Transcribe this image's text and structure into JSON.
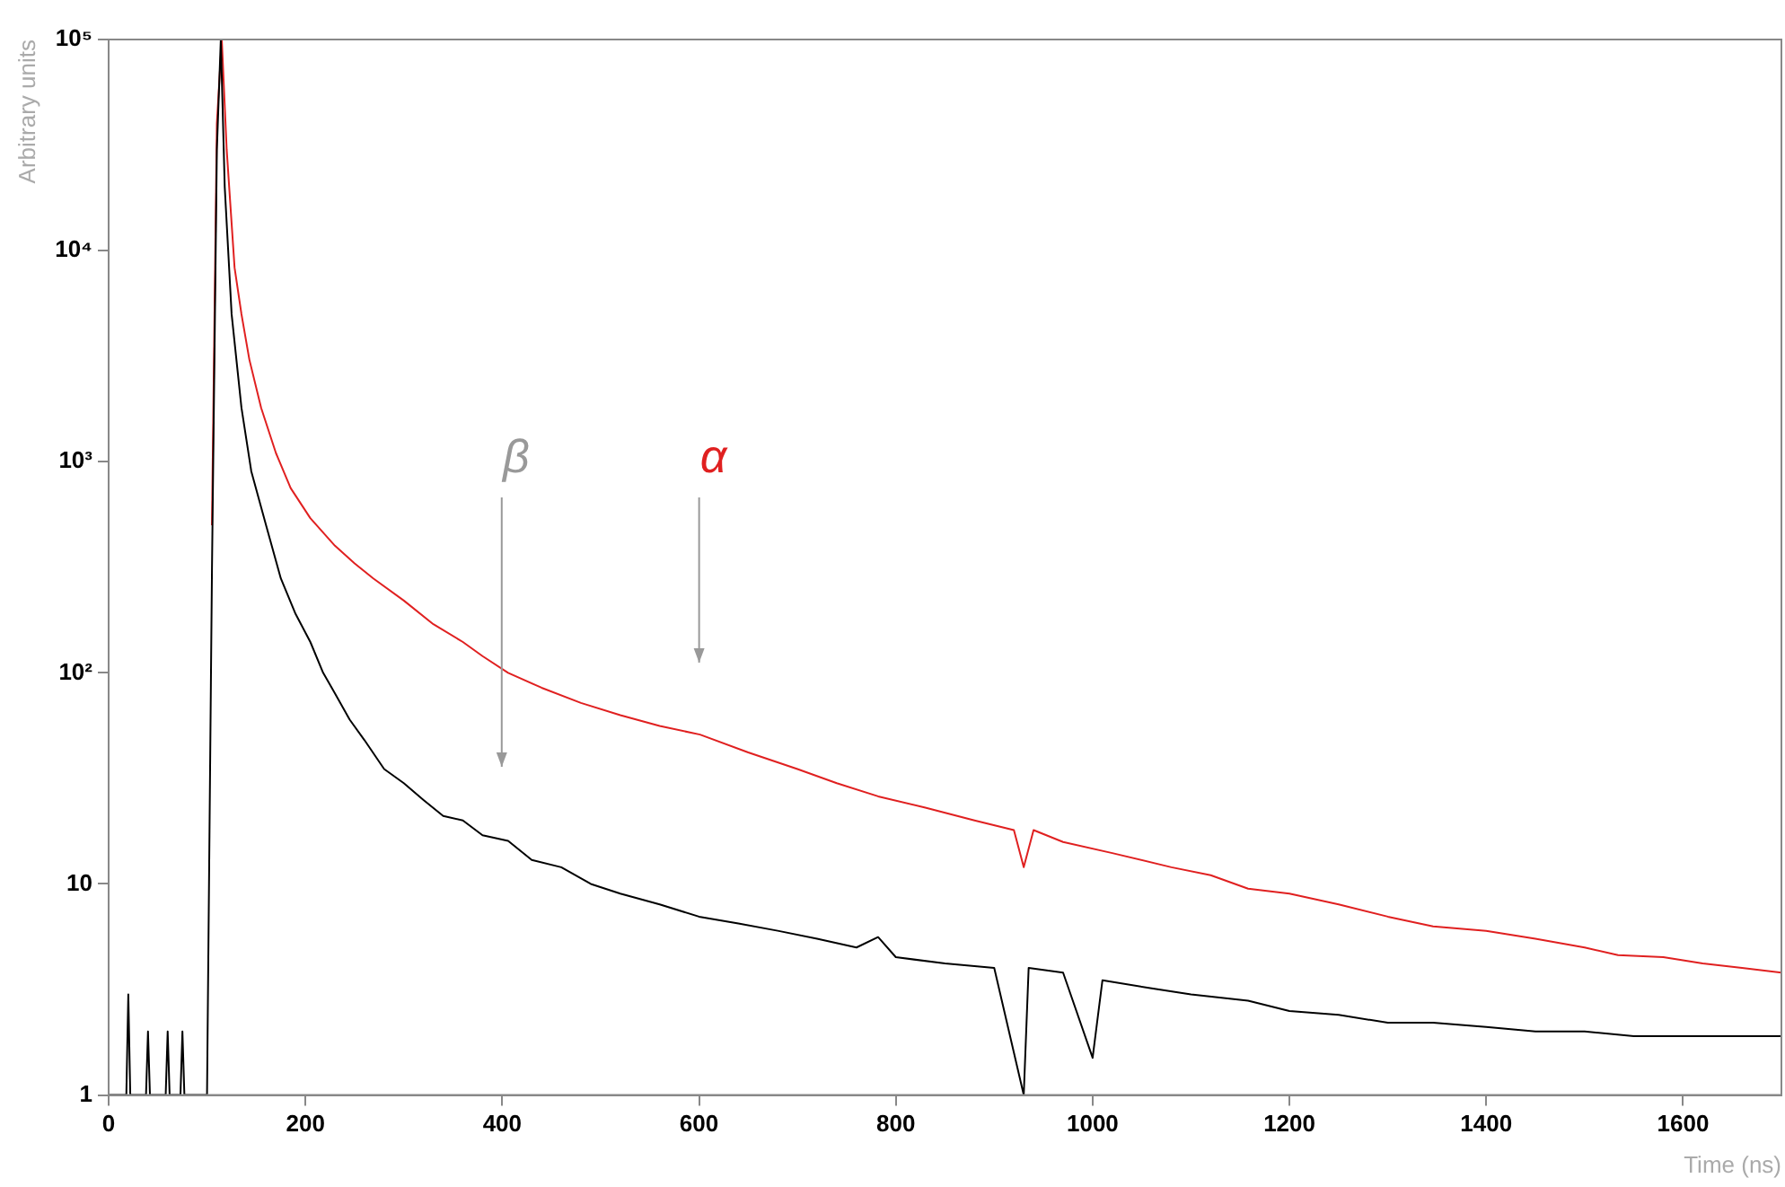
{
  "chart_data": {
    "type": "line",
    "xlabel": "Time (ns)",
    "ylabel": "Arbitrary units",
    "log": "y",
    "grid": false,
    "marker": "none",
    "line_style": "solid",
    "xlim": [
      0,
      1700
    ],
    "xticks": [
      0,
      200,
      400,
      600,
      800,
      1000,
      1200,
      1400,
      1600
    ],
    "ylim": [
      1,
      100000
    ],
    "yticks": [
      1,
      {
        "value": 10,
        "label": "10"
      },
      {
        "value": 100,
        "label": "10²"
      },
      {
        "value": 1000,
        "label": "10³"
      },
      {
        "value": 10000,
        "label": "10⁴"
      },
      {
        "value": 100000,
        "label": "10⁵"
      }
    ],
    "series": [
      {
        "color": "#000000",
        "x": [
          0,
          18,
          20,
          22,
          38,
          40,
          42,
          58,
          60,
          62,
          73,
          75,
          77,
          100,
          105,
          110,
          114,
          118,
          125,
          135,
          145,
          160,
          175,
          190,
          205,
          218,
          230,
          245,
          260,
          280,
          300,
          320,
          340,
          360,
          380,
          406,
          430,
          460,
          490,
          520,
          560,
          600,
          640,
          680,
          720,
          760,
          782,
          800,
          850,
          900,
          930,
          935,
          970,
          1000,
          1010,
          1060,
          1100,
          1158,
          1200,
          1250,
          1300,
          1346,
          1400,
          1450,
          1500,
          1550,
          1600,
          1650,
          1700
        ],
        "values": [
          1,
          1,
          3,
          1,
          1,
          2,
          1,
          1,
          2,
          1,
          1,
          2,
          1,
          1,
          300,
          30000,
          100000,
          20000,
          5000,
          1800,
          900,
          500,
          280,
          190,
          140,
          100,
          80,
          60,
          48,
          35,
          30,
          25,
          21,
          20,
          17,
          16,
          13,
          12,
          10,
          9,
          8,
          7,
          6.5,
          6,
          5.5,
          5,
          5.6,
          4.5,
          4.2,
          4,
          1,
          4,
          3.8,
          1.5,
          3.5,
          3.2,
          3,
          2.8,
          2.5,
          2.4,
          2.2,
          2.2,
          2.1,
          2,
          2,
          1.9,
          1.9,
          1.9,
          1.9
        ]
      },
      {
        "color": "#e02020",
        "x": [
          105,
          110,
          115,
          120,
          128,
          135,
          143,
          155,
          170,
          185,
          205,
          230,
          250,
          269,
          300,
          330,
          360,
          380,
          406,
          440,
          480,
          520,
          560,
          601,
          650,
          700,
          740,
          782,
          830,
          880,
          920,
          930,
          940,
          970,
          1020,
          1080,
          1120,
          1158,
          1200,
          1250,
          1300,
          1346,
          1400,
          1450,
          1500,
          1534,
          1580,
          1620,
          1660,
          1700
        ],
        "values": [
          500,
          40000,
          100000,
          30000,
          8300,
          5000,
          3050,
          1800,
          1100,
          750,
          540,
          400,
          330,
          280,
          220,
          170,
          140,
          120,
          100,
          85,
          72,
          63,
          56,
          51,
          42,
          35,
          30,
          26,
          23,
          20,
          18,
          12,
          18,
          15.8,
          14,
          12,
          11,
          9.5,
          9,
          8,
          7,
          6.3,
          6,
          5.5,
          5,
          4.6,
          4.5,
          4.2,
          4,
          3.8
        ]
      }
    ],
    "annotations": [
      "β",
      "α"
    ]
  }
}
